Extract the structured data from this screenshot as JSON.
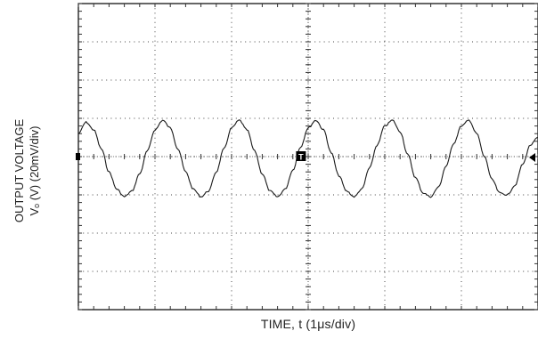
{
  "chart_data": {
    "type": "line",
    "title": "",
    "xlabel": "TIME, t (1μs/div)",
    "ylabel_line1": "OUTPUT VOLTAGE",
    "ylabel_line2": "Vₒ (V) (20mV/div)",
    "x_divisions": 6,
    "y_divisions": 8,
    "grid": true,
    "xlim_us": [
      0,
      6
    ],
    "ylim_div": [
      -4,
      4
    ],
    "series": [
      {
        "x_us": [
          0.0,
          0.1,
          0.2,
          0.3,
          0.4,
          0.5,
          0.6,
          0.7,
          0.8,
          0.9,
          1.0,
          1.1,
          1.2,
          1.3,
          1.4,
          1.5,
          1.6,
          1.7,
          1.8,
          1.9,
          2.0,
          2.1,
          2.2,
          2.3,
          2.4,
          2.5,
          2.6,
          2.7,
          2.8,
          2.9,
          3.0,
          3.1,
          3.2,
          3.3,
          3.4,
          3.5,
          3.6,
          3.7,
          3.8,
          3.9,
          4.0,
          4.1,
          4.2,
          4.3,
          4.4,
          4.5,
          4.6,
          4.7,
          4.8,
          4.9,
          5.0,
          5.1,
          5.2,
          5.3,
          5.4,
          5.5,
          5.6,
          5.7,
          5.8,
          5.9,
          6.0
        ],
        "y_div": [
          0.6,
          0.9,
          0.7,
          0.2,
          -0.4,
          -0.85,
          -1.05,
          -0.9,
          -0.45,
          0.15,
          0.7,
          0.95,
          0.75,
          0.2,
          -0.4,
          -0.85,
          -1.05,
          -0.9,
          -0.4,
          0.2,
          0.75,
          0.95,
          0.7,
          0.15,
          -0.45,
          -0.9,
          -1.05,
          -0.85,
          -0.35,
          0.25,
          0.75,
          0.95,
          0.7,
          0.1,
          -0.5,
          -0.9,
          -1.05,
          -0.85,
          -0.3,
          0.3,
          0.8,
          0.95,
          0.65,
          0.05,
          -0.55,
          -0.95,
          -1.05,
          -0.8,
          -0.25,
          0.35,
          0.8,
          0.95,
          0.6,
          0.0,
          -0.6,
          -0.95,
          -1.0,
          -0.75,
          -0.2,
          0.3,
          0.5
        ]
      }
    ],
    "markers": {
      "left_marker_label": "",
      "trigger_marker_label": "T",
      "trigger_marker_x_us": 2.9,
      "right_arrow": true
    }
  }
}
